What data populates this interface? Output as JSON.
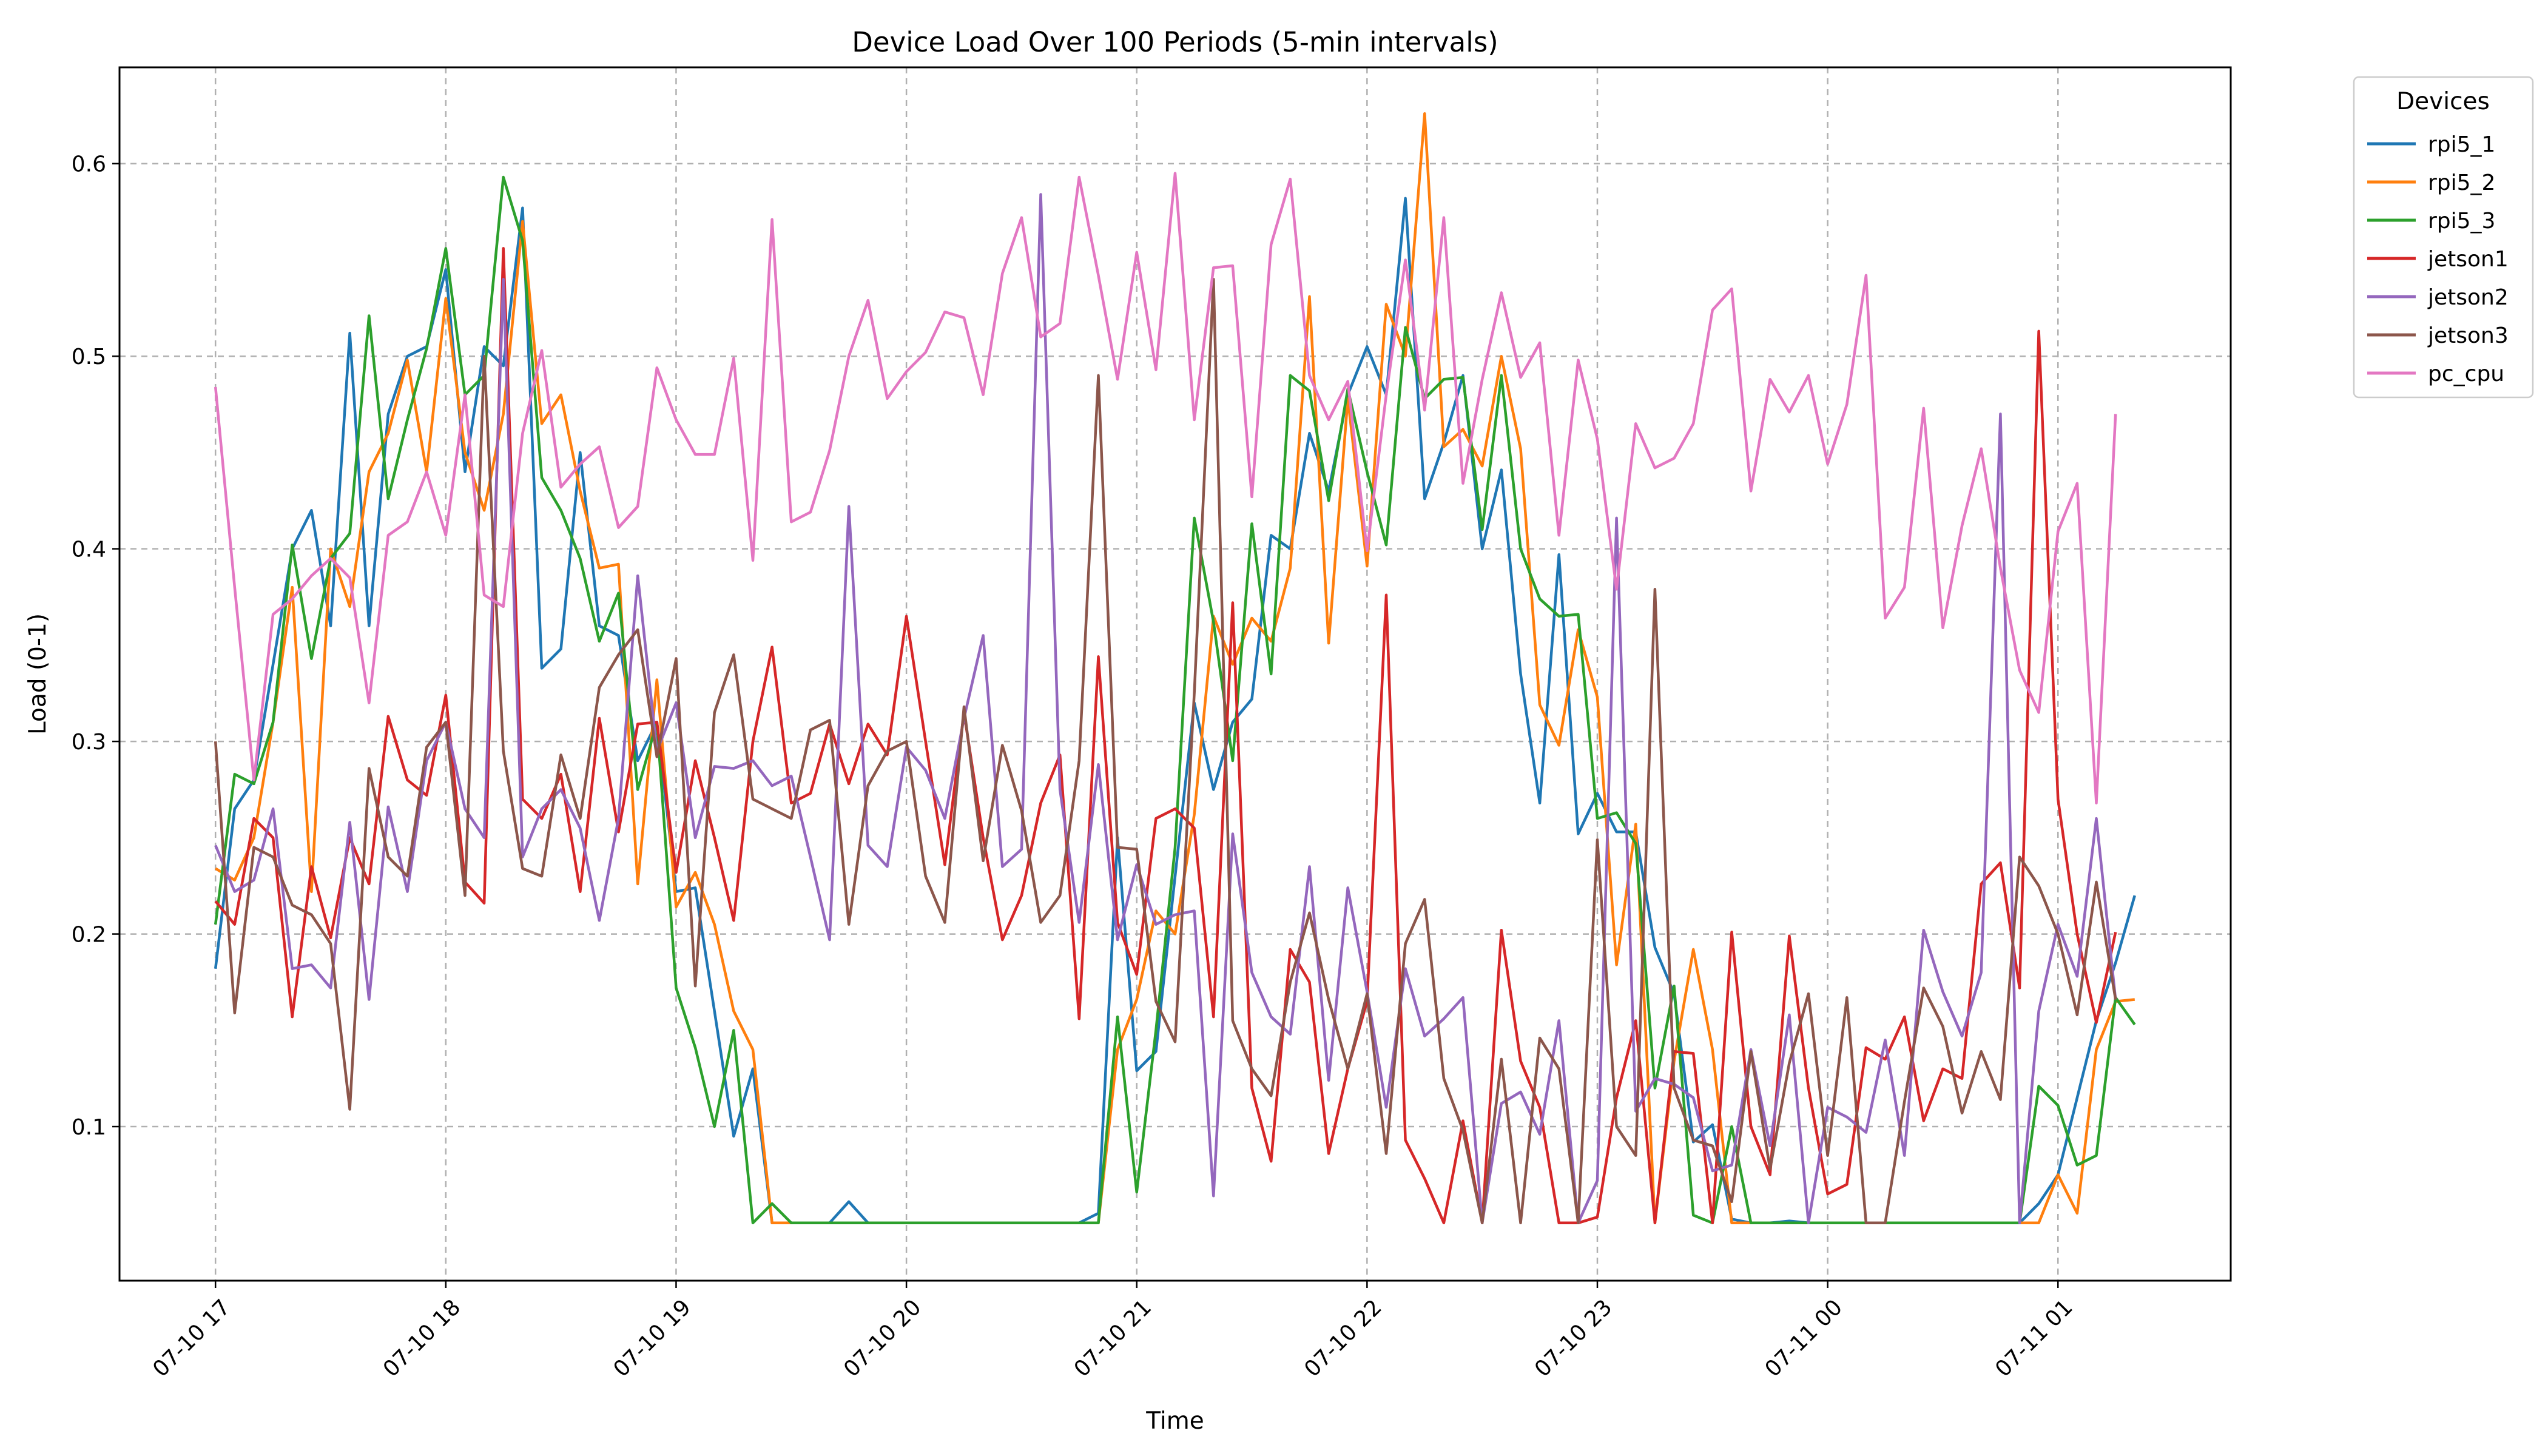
{
  "chart_data": {
    "type": "line",
    "title": "Device Load Over 100 Periods (5-min intervals)",
    "xlabel": "Time",
    "ylabel": "Load (0-1)",
    "x_start": "2024-07-10 17:00",
    "x_step_minutes": 5,
    "x_ticks": [
      "07-10 17",
      "07-10 18",
      "07-10 19",
      "07-10 20",
      "07-10 21",
      "07-10 22",
      "07-10 23",
      "07-11 00",
      "07-11 01"
    ],
    "y_ticks": [
      0.1,
      0.2,
      0.3,
      0.4,
      0.5,
      0.6
    ],
    "ylim": [
      0.02,
      0.65
    ],
    "grid": true,
    "legend": {
      "title": "Devices",
      "placement": "outside-top-right"
    },
    "series": [
      {
        "name": "rpi5_1",
        "color": "#1f77b4",
        "values": [
          0.182,
          0.265,
          0.28,
          0.34,
          0.4,
          0.42,
          0.36,
          0.512,
          0.36,
          0.47,
          0.5,
          0.505,
          0.545,
          0.44,
          0.505,
          0.495,
          0.577,
          0.338,
          0.348,
          0.45,
          0.36,
          0.355,
          0.29,
          0.31,
          0.222,
          0.224,
          0.16,
          0.095,
          0.13,
          0.05,
          0.05,
          0.05,
          0.05,
          0.061,
          0.05,
          0.05,
          0.05,
          0.05,
          0.05,
          0.05,
          0.05,
          0.05,
          0.05,
          0.05,
          0.05,
          0.05,
          0.055,
          0.25,
          0.129,
          0.139,
          0.23,
          0.32,
          0.275,
          0.31,
          0.322,
          0.407,
          0.4,
          0.46,
          0.43,
          0.48,
          0.505,
          0.48,
          0.582,
          0.426,
          0.455,
          0.49,
          0.4,
          0.441,
          0.335,
          0.268,
          0.397,
          0.252,
          0.273,
          0.253,
          0.253,
          0.193,
          0.169,
          0.092,
          0.101,
          0.052,
          0.05,
          0.05,
          0.051,
          0.05,
          0.05,
          0.05,
          0.05,
          0.05,
          0.05,
          0.05,
          0.05,
          0.05,
          0.05,
          0.05,
          0.05,
          0.06,
          0.075,
          0.115,
          0.155,
          0.185,
          0.22
        ]
      },
      {
        "name": "rpi5_2",
        "color": "#ff7f0e",
        "values": [
          0.234,
          0.228,
          0.25,
          0.31,
          0.38,
          0.222,
          0.4,
          0.37,
          0.44,
          0.46,
          0.498,
          0.44,
          0.53,
          0.45,
          0.42,
          0.47,
          0.57,
          0.465,
          0.48,
          0.43,
          0.39,
          0.392,
          0.226,
          0.332,
          0.214,
          0.232,
          0.205,
          0.16,
          0.14,
          0.05,
          0.05,
          0.05,
          0.05,
          0.05,
          0.05,
          0.05,
          0.05,
          0.05,
          0.05,
          0.05,
          0.05,
          0.05,
          0.05,
          0.05,
          0.05,
          0.05,
          0.05,
          0.14,
          0.166,
          0.212,
          0.2,
          0.262,
          0.365,
          0.34,
          0.364,
          0.352,
          0.39,
          0.531,
          0.351,
          0.478,
          0.391,
          0.527,
          0.5,
          0.626,
          0.453,
          0.462,
          0.443,
          0.5,
          0.452,
          0.319,
          0.298,
          0.358,
          0.323,
          0.184,
          0.257,
          0.05,
          0.134,
          0.192,
          0.14,
          0.05,
          0.05,
          0.05,
          0.05,
          0.05,
          0.05,
          0.05,
          0.05,
          0.05,
          0.05,
          0.05,
          0.05,
          0.05,
          0.05,
          0.05,
          0.05,
          0.05,
          0.075,
          0.055,
          0.14,
          0.165,
          0.166
        ]
      },
      {
        "name": "rpi5_3",
        "color": "#2ca02c",
        "values": [
          0.205,
          0.283,
          0.278,
          0.31,
          0.402,
          0.343,
          0.395,
          0.408,
          0.521,
          0.426,
          0.467,
          0.504,
          0.556,
          0.48,
          0.49,
          0.593,
          0.56,
          0.437,
          0.42,
          0.395,
          0.352,
          0.377,
          0.275,
          0.31,
          0.172,
          0.141,
          0.1,
          0.15,
          0.05,
          0.06,
          0.05,
          0.05,
          0.05,
          0.05,
          0.05,
          0.05,
          0.05,
          0.05,
          0.05,
          0.05,
          0.05,
          0.05,
          0.05,
          0.05,
          0.05,
          0.05,
          0.05,
          0.157,
          0.066,
          0.15,
          0.245,
          0.416,
          0.362,
          0.29,
          0.413,
          0.335,
          0.49,
          0.482,
          0.425,
          0.483,
          0.44,
          0.402,
          0.515,
          0.478,
          0.488,
          0.489,
          0.41,
          0.49,
          0.4,
          0.374,
          0.365,
          0.366,
          0.26,
          0.263,
          0.247,
          0.12,
          0.173,
          0.054,
          0.05,
          0.1,
          0.05,
          0.05,
          0.05,
          0.05,
          0.05,
          0.05,
          0.05,
          0.05,
          0.05,
          0.05,
          0.05,
          0.05,
          0.05,
          0.05,
          0.05,
          0.121,
          0.111,
          0.08,
          0.085,
          0.167,
          0.153
        ]
      },
      {
        "name": "jetson1",
        "color": "#d62728",
        "values": [
          0.217,
          0.205,
          0.26,
          0.25,
          0.157,
          0.235,
          0.198,
          0.25,
          0.226,
          0.313,
          0.28,
          0.272,
          0.324,
          0.227,
          0.216,
          0.556,
          0.27,
          0.26,
          0.283,
          0.222,
          0.312,
          0.253,
          0.309,
          0.31,
          0.232,
          0.29,
          0.25,
          0.207,
          0.3,
          0.349,
          0.268,
          0.273,
          0.309,
          0.278,
          0.309,
          0.293,
          0.365,
          0.3,
          0.236,
          0.315,
          0.25,
          0.197,
          0.22,
          0.268,
          0.293,
          0.156,
          0.344,
          0.206,
          0.179,
          0.26,
          0.265,
          0.255,
          0.157,
          0.372,
          0.12,
          0.082,
          0.192,
          0.175,
          0.086,
          0.13,
          0.165,
          0.376,
          0.093,
          0.073,
          0.05,
          0.103,
          0.05,
          0.202,
          0.134,
          0.11,
          0.05,
          0.05,
          0.053,
          0.115,
          0.155,
          0.05,
          0.139,
          0.138,
          0.05,
          0.201,
          0.1,
          0.075,
          0.199,
          0.12,
          0.065,
          0.07,
          0.141,
          0.135,
          0.157,
          0.103,
          0.13,
          0.125,
          0.226,
          0.237,
          0.172,
          0.513,
          0.27,
          0.2,
          0.154,
          0.201
        ]
      },
      {
        "name": "jetson2",
        "color": "#9467bd",
        "values": [
          0.246,
          0.222,
          0.228,
          0.265,
          0.182,
          0.184,
          0.172,
          0.258,
          0.166,
          0.266,
          0.222,
          0.29,
          0.31,
          0.265,
          0.25,
          0.54,
          0.24,
          0.265,
          0.275,
          0.255,
          0.207,
          0.26,
          0.386,
          0.295,
          0.32,
          0.25,
          0.287,
          0.286,
          0.29,
          0.277,
          0.282,
          0.24,
          0.197,
          0.422,
          0.246,
          0.235,
          0.297,
          0.285,
          0.26,
          0.312,
          0.355,
          0.235,
          0.244,
          0.584,
          0.275,
          0.206,
          0.288,
          0.197,
          0.236,
          0.205,
          0.21,
          0.212,
          0.064,
          0.252,
          0.18,
          0.157,
          0.148,
          0.235,
          0.124,
          0.224,
          0.17,
          0.11,
          0.182,
          0.147,
          0.156,
          0.167,
          0.05,
          0.112,
          0.118,
          0.096,
          0.155,
          0.05,
          0.072,
          0.416,
          0.108,
          0.125,
          0.122,
          0.115,
          0.077,
          0.08,
          0.14,
          0.09,
          0.158,
          0.05,
          0.11,
          0.105,
          0.097,
          0.145,
          0.085,
          0.202,
          0.17,
          0.147,
          0.18,
          0.47,
          0.05,
          0.16,
          0.205,
          0.178,
          0.26,
          0.166
        ]
      },
      {
        "name": "jetson3",
        "color": "#8c564b",
        "values": [
          0.3,
          0.159,
          0.245,
          0.24,
          0.215,
          0.21,
          0.195,
          0.109,
          0.286,
          0.24,
          0.23,
          0.297,
          0.31,
          0.22,
          0.5,
          0.295,
          0.234,
          0.23,
          0.293,
          0.26,
          0.328,
          0.345,
          0.358,
          0.292,
          0.343,
          0.173,
          0.315,
          0.345,
          0.27,
          0.265,
          0.26,
          0.306,
          0.311,
          0.205,
          0.277,
          0.295,
          0.3,
          0.23,
          0.206,
          0.318,
          0.238,
          0.298,
          0.264,
          0.206,
          0.22,
          0.29,
          0.49,
          0.245,
          0.244,
          0.165,
          0.144,
          0.325,
          0.54,
          0.155,
          0.13,
          0.116,
          0.175,
          0.211,
          0.166,
          0.13,
          0.169,
          0.086,
          0.195,
          0.218,
          0.125,
          0.098,
          0.05,
          0.135,
          0.05,
          0.146,
          0.13,
          0.05,
          0.249,
          0.1,
          0.085,
          0.379,
          0.12,
          0.093,
          0.09,
          0.061,
          0.139,
          0.078,
          0.133,
          0.169,
          0.085,
          0.167,
          0.05,
          0.05,
          0.113,
          0.172,
          0.152,
          0.107,
          0.139,
          0.114,
          0.24,
          0.225,
          0.2,
          0.158,
          0.227,
          0.166
        ]
      },
      {
        "name": "pc_cpu",
        "color": "#e377c2",
        "values": [
          0.484,
          0.38,
          0.28,
          0.366,
          0.374,
          0.386,
          0.395,
          0.385,
          0.32,
          0.407,
          0.414,
          0.44,
          0.407,
          0.48,
          0.376,
          0.37,
          0.46,
          0.503,
          0.432,
          0.444,
          0.453,
          0.411,
          0.422,
          0.494,
          0.467,
          0.449,
          0.449,
          0.499,
          0.394,
          0.571,
          0.414,
          0.419,
          0.451,
          0.5,
          0.529,
          0.478,
          0.492,
          0.502,
          0.523,
          0.52,
          0.48,
          0.543,
          0.572,
          0.51,
          0.517,
          0.593,
          0.542,
          0.488,
          0.554,
          0.493,
          0.595,
          0.467,
          0.546,
          0.547,
          0.427,
          0.558,
          0.592,
          0.49,
          0.467,
          0.487,
          0.399,
          0.48,
          0.55,
          0.472,
          0.572,
          0.434,
          0.488,
          0.533,
          0.489,
          0.507,
          0.407,
          0.498,
          0.457,
          0.379,
          0.465,
          0.442,
          0.447,
          0.465,
          0.524,
          0.535,
          0.43,
          0.488,
          0.471,
          0.49,
          0.444,
          0.475,
          0.542,
          0.364,
          0.38,
          0.473,
          0.359,
          0.412,
          0.452,
          0.39,
          0.337,
          0.315,
          0.409,
          0.434,
          0.268,
          0.47
        ]
      }
    ]
  }
}
